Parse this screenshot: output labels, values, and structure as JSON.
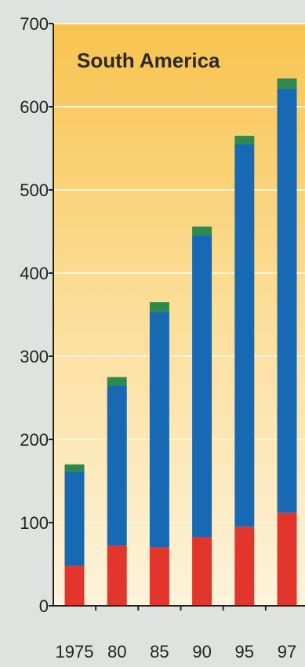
{
  "chart_data": {
    "type": "bar",
    "stacked": true,
    "title": "South America",
    "xlabel": "",
    "ylabel": "",
    "categories": [
      "1975",
      "80",
      "85",
      "90",
      "95",
      "97"
    ],
    "series": [
      {
        "color": "#e2352c",
        "values": [
          48,
          72,
          70,
          83,
          95,
          112
        ]
      },
      {
        "color": "#1769b3",
        "values": [
          114,
          193,
          283,
          363,
          460,
          510
        ]
      },
      {
        "color": "#2e8a4c",
        "values": [
          8,
          10,
          12,
          10,
          10,
          12
        ]
      }
    ],
    "ylim": [
      0,
      700
    ],
    "yticks": [
      0,
      100,
      200,
      300,
      400,
      500,
      600,
      700
    ],
    "grid": true,
    "legend": "none",
    "colors": {
      "background": "#dfe3e0",
      "plot_top": "#f8c34f",
      "plot_bottom": "#fdf3dc",
      "grid": "#fff4d8",
      "axis": "#222222"
    }
  }
}
